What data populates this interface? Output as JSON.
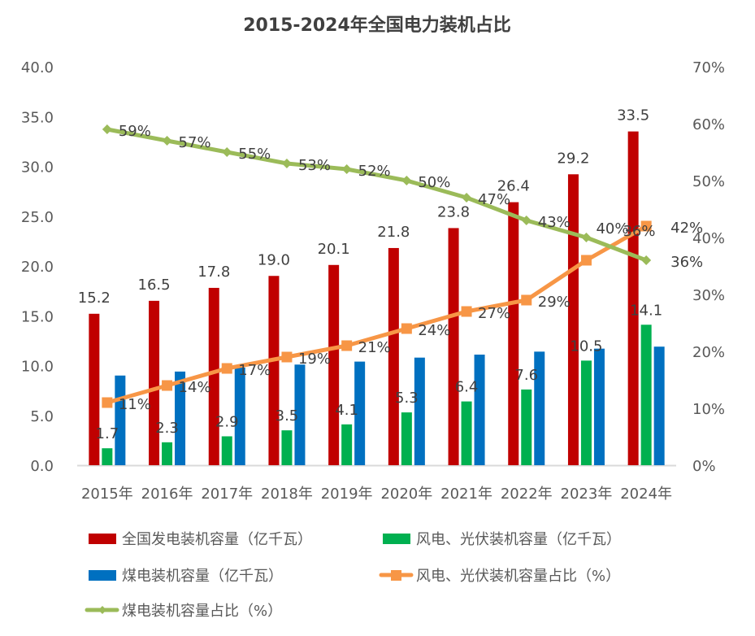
{
  "chart_data": {
    "type": "bar",
    "title": "2015-2024年全国电力装机占比",
    "categories": [
      "2015年",
      "2016年",
      "2017年",
      "2018年",
      "2019年",
      "2020年",
      "2021年",
      "2022年",
      "2023年",
      "2024年"
    ],
    "y_left": {
      "min": 0,
      "max": 40,
      "step": 5,
      "tick_labels": [
        "0.0",
        "5.0",
        "10.0",
        "15.0",
        "20.0",
        "25.0",
        "30.0",
        "35.0",
        "40.0"
      ]
    },
    "y_right": {
      "min": 0,
      "max": 70,
      "step": 10,
      "tick_labels": [
        "0%",
        "10%",
        "20%",
        "30%",
        "40%",
        "50%",
        "60%",
        "70%"
      ]
    },
    "grid": false,
    "legend_position": "bottom",
    "series": [
      {
        "name": "全国发电装机容量（亿千瓦）",
        "kind": "bar",
        "axis": "left",
        "color": "#C00000",
        "values": [
          15.2,
          16.5,
          17.8,
          19.0,
          20.1,
          21.8,
          23.8,
          26.4,
          29.2,
          33.5
        ],
        "labels": [
          "15.2",
          "16.5",
          "17.8",
          "19.0",
          "20.1",
          "21.8",
          "23.8",
          "26.4",
          "29.2",
          "33.5"
        ]
      },
      {
        "name": "风电、光伏装机容量（亿千瓦）",
        "kind": "bar",
        "axis": "left",
        "color": "#00B050",
        "values": [
          1.7,
          2.3,
          2.9,
          3.5,
          4.1,
          5.3,
          6.4,
          7.6,
          10.5,
          14.1
        ],
        "labels": [
          "1.7",
          "2.3",
          "2.9",
          "3.5",
          "4.1",
          "5.3",
          "6.4",
          "7.6",
          "10.5",
          "14.1"
        ]
      },
      {
        "name": "煤电装机容量（亿千瓦）",
        "kind": "bar",
        "axis": "left",
        "color": "#0070C0",
        "values": [
          9.0,
          9.4,
          9.8,
          10.1,
          10.4,
          10.8,
          11.1,
          11.4,
          11.7,
          11.9
        ],
        "labels": []
      },
      {
        "name": "风电、光伏装机容量占比（%）",
        "kind": "line",
        "marker": "square",
        "axis": "right",
        "color": "#F79646",
        "values": [
          11,
          14,
          17,
          19,
          21,
          24,
          27,
          29,
          36,
          42
        ],
        "labels": [
          "11%",
          "14%",
          "17%",
          "19%",
          "21%",
          "24%",
          "27%",
          "29%",
          "36%",
          "42%"
        ]
      },
      {
        "name": "煤电装机容量占比（%）",
        "kind": "line",
        "marker": "diamond",
        "axis": "right",
        "color": "#9BBB59",
        "values": [
          59,
          57,
          55,
          53,
          52,
          50,
          47,
          43,
          40,
          36
        ],
        "labels": [
          "59%",
          "57%",
          "55%",
          "53%",
          "52%",
          "50%",
          "47%",
          "43%",
          "40%",
          "36%"
        ]
      }
    ]
  }
}
